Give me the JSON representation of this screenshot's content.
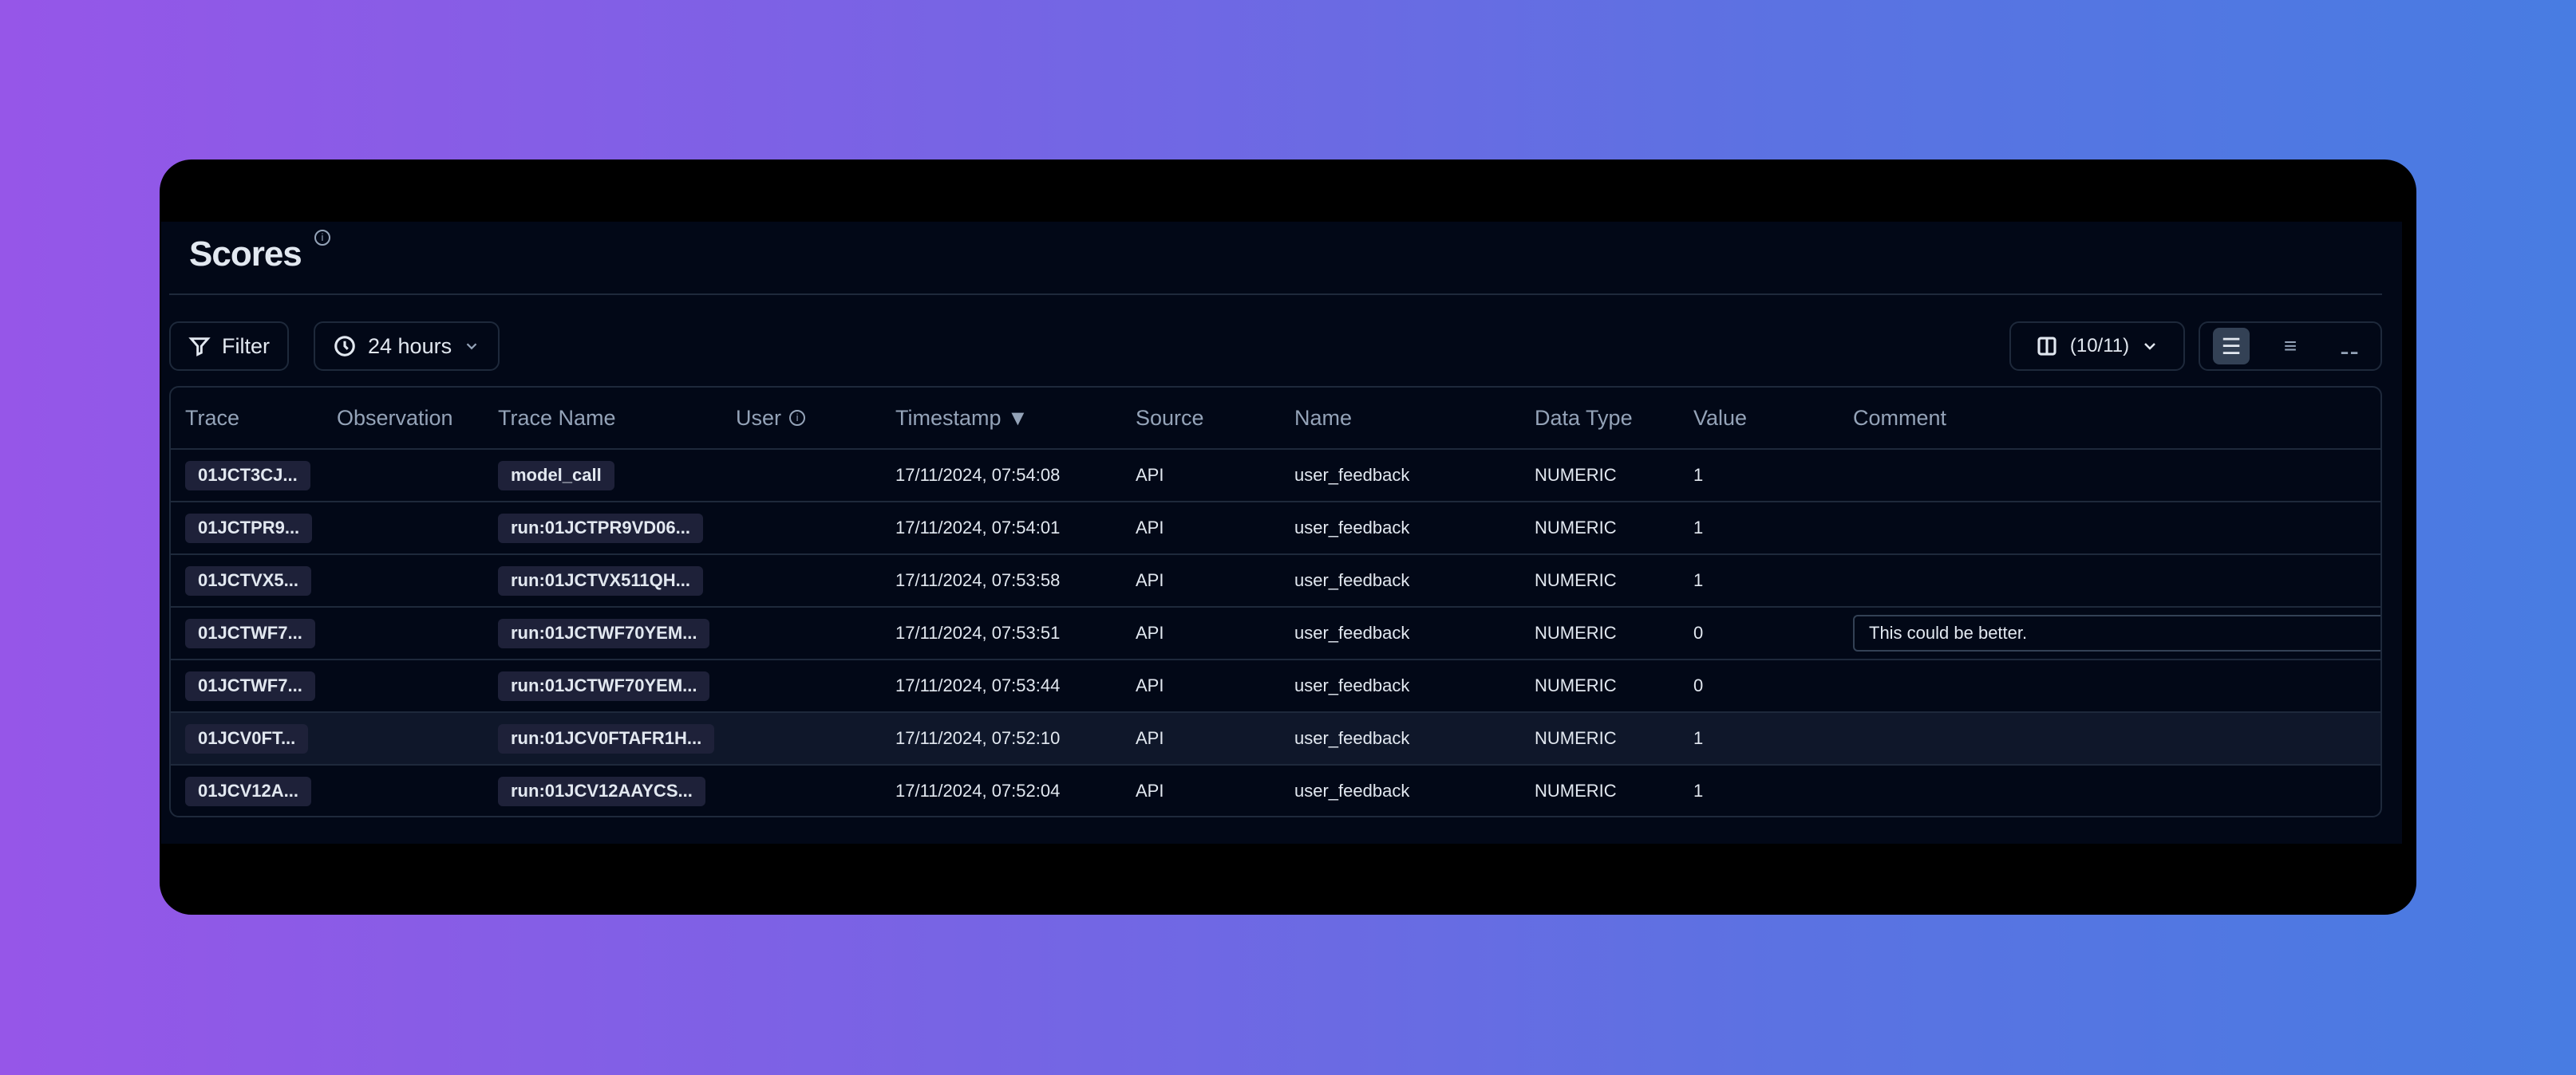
{
  "page": {
    "title": "Scores"
  },
  "toolbar": {
    "filter_label": "Filter",
    "time_range": "24 hours",
    "columns_label": "(10/11)",
    "density_options": [
      "comfortable",
      "compact",
      "minimal"
    ],
    "density_selected": "comfortable"
  },
  "table": {
    "headers": [
      "Trace",
      "Observation",
      "Trace Name",
      "User",
      "Timestamp ▼",
      "Source",
      "Name",
      "Data Type",
      "Value",
      "Comment"
    ],
    "rows": [
      {
        "trace": "01JCT3CJ...",
        "observation": "",
        "trace_name": "model_call",
        "user": "",
        "timestamp": "17/11/2024, 07:54:08",
        "source": "API",
        "name": "user_feedback",
        "data_type": "NUMERIC",
        "value": "1",
        "comment": ""
      },
      {
        "trace": "01JCTPR9...",
        "observation": "",
        "trace_name": "run:01JCTPR9VD06...",
        "user": "",
        "timestamp": "17/11/2024, 07:54:01",
        "source": "API",
        "name": "user_feedback",
        "data_type": "NUMERIC",
        "value": "1",
        "comment": ""
      },
      {
        "trace": "01JCTVX5...",
        "observation": "",
        "trace_name": "run:01JCTVX511QH...",
        "user": "",
        "timestamp": "17/11/2024, 07:53:58",
        "source": "API",
        "name": "user_feedback",
        "data_type": "NUMERIC",
        "value": "1",
        "comment": ""
      },
      {
        "trace": "01JCTWF7...",
        "observation": "",
        "trace_name": "run:01JCTWF70YEM...",
        "user": "",
        "timestamp": "17/11/2024, 07:53:51",
        "source": "API",
        "name": "user_feedback",
        "data_type": "NUMERIC",
        "value": "0",
        "comment": "This could be better."
      },
      {
        "trace": "01JCTWF7...",
        "observation": "",
        "trace_name": "run:01JCTWF70YEM...",
        "user": "",
        "timestamp": "17/11/2024, 07:53:44",
        "source": "API",
        "name": "user_feedback",
        "data_type": "NUMERIC",
        "value": "0",
        "comment": ""
      },
      {
        "trace": "01JCV0FT...",
        "observation": "",
        "trace_name": "run:01JCV0FTAFR1H...",
        "user": "",
        "timestamp": "17/11/2024, 07:52:10",
        "source": "API",
        "name": "user_feedback",
        "data_type": "NUMERIC",
        "value": "1",
        "comment": ""
      },
      {
        "trace": "01JCV12A...",
        "observation": "",
        "trace_name": "run:01JCV12AAYCS...",
        "user": "",
        "timestamp": "17/11/2024, 07:52:04",
        "source": "API",
        "name": "user_feedback",
        "data_type": "NUMERIC",
        "value": "1",
        "comment": ""
      }
    ],
    "hovered_row": 5
  }
}
